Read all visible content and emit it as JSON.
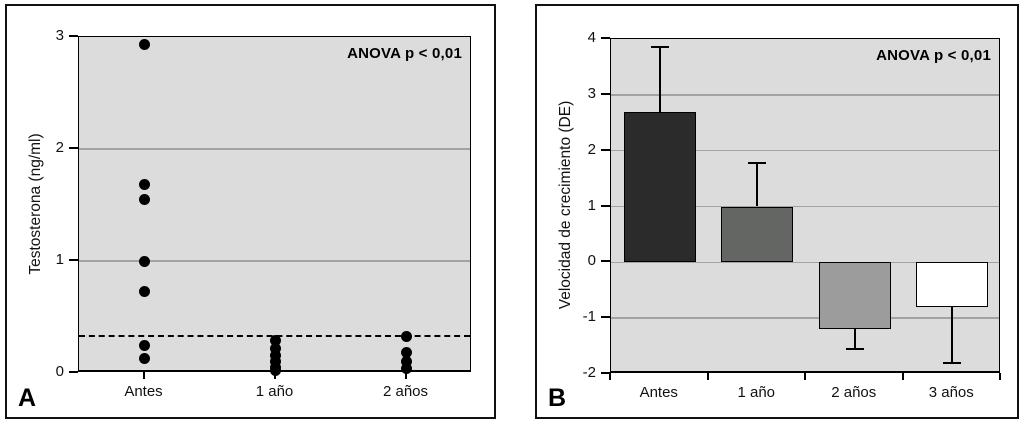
{
  "figure": {
    "background": "#ffffff",
    "plot_background": "#dcdcdc",
    "gridline_color": "#a2a2a2",
    "point_color": "#000000"
  },
  "chart_data": [
    {
      "type": "scatter",
      "panel_label": "A",
      "ylabel": "Testosterona (ng/ml)",
      "annotation": "ANOVA p < 0,01",
      "categories": [
        "Antes",
        "1 año",
        "2 años"
      ],
      "series": [
        {
          "category": "Antes",
          "values": [
            2.93,
            1.68,
            1.55,
            1.0,
            0.73,
            0.25,
            0.13
          ]
        },
        {
          "category": "1 año",
          "values": [
            0.29,
            0.22,
            0.16,
            0.1,
            0.05,
            0.02
          ]
        },
        {
          "category": "2 años",
          "values": [
            0.33,
            0.18,
            0.1,
            0.04
          ]
        }
      ],
      "reference_line_y": 0.33,
      "ylim": [
        0,
        3
      ],
      "yticks": [
        0,
        1,
        2,
        3
      ],
      "gridlines": [
        1,
        2
      ],
      "xticks_at": "centers",
      "legend": "none",
      "grid": "horizontal"
    },
    {
      "type": "bar",
      "panel_label": "B",
      "ylabel": "Velocidad de crecimiento (DE)",
      "annotation": "ANOVA p < 0,01",
      "categories": [
        "Antes",
        "1 año",
        "2 años",
        "3 años"
      ],
      "values": [
        2.7,
        1.0,
        -1.2,
        -0.8
      ],
      "error_tips": [
        3.85,
        1.78,
        -1.55,
        -1.8
      ],
      "bar_colors": [
        "#2b2b2b",
        "#636663",
        "#9c9c9c",
        "#ffffff"
      ],
      "ylim": [
        -2,
        4
      ],
      "yticks": [
        -2,
        -1,
        0,
        1,
        2,
        3,
        4
      ],
      "gridlines": [
        -1,
        0,
        1,
        2,
        3
      ],
      "xticks_at": "boundaries",
      "legend": "none",
      "grid": "horizontal"
    }
  ]
}
